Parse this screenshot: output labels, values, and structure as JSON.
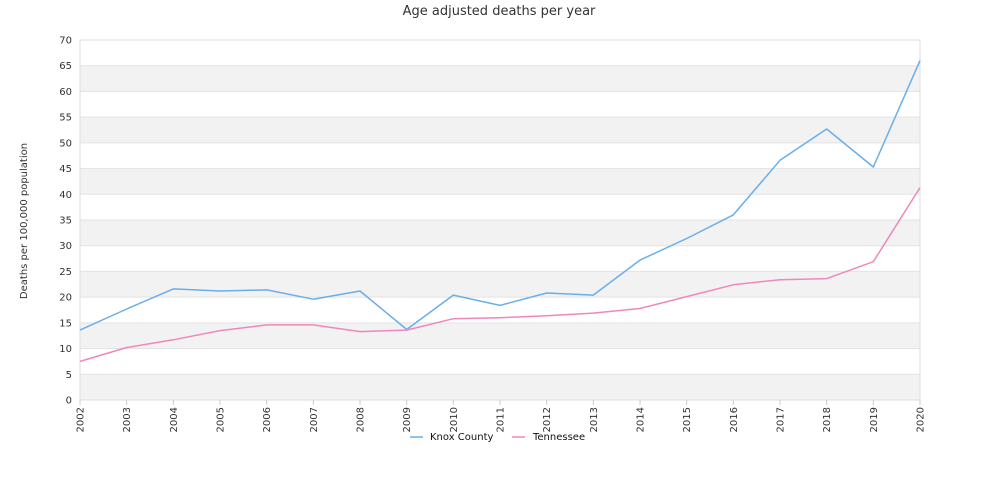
{
  "chart_data": {
    "type": "line",
    "title": "Age adjusted deaths per year",
    "xlabel": "",
    "ylabel": "Deaths per 100,000 population",
    "x": [
      "2002",
      "2003",
      "2004",
      "2005",
      "2006",
      "2007",
      "2008",
      "2009",
      "2010",
      "2011",
      "2012",
      "2013",
      "2014",
      "2015",
      "2016",
      "2017",
      "2018",
      "2019",
      "2020"
    ],
    "ylim": [
      0,
      70
    ],
    "y_ticks": [
      0,
      5,
      10,
      15,
      20,
      25,
      30,
      35,
      40,
      45,
      50,
      55,
      60,
      65,
      70
    ],
    "grid": true,
    "grid_style": "alternating horizontal bands",
    "legend_position": "bottom-center",
    "series": [
      {
        "name": "Knox County",
        "color": "#6aaeea",
        "values": [
          13.6,
          17.7,
          21.6,
          21.2,
          21.4,
          19.6,
          21.2,
          13.7,
          20.4,
          18.4,
          20.8,
          20.4,
          27.2,
          31.4,
          36.0,
          46.6,
          52.7,
          45.3,
          66.0
        ]
      },
      {
        "name": "Tennessee",
        "color": "#ee88bb",
        "values": [
          7.5,
          10.2,
          11.7,
          13.5,
          14.6,
          14.6,
          13.3,
          13.6,
          15.8,
          16.0,
          16.4,
          16.9,
          17.8,
          20.1,
          22.4,
          23.4,
          23.6,
          26.9,
          41.3
        ]
      }
    ]
  }
}
